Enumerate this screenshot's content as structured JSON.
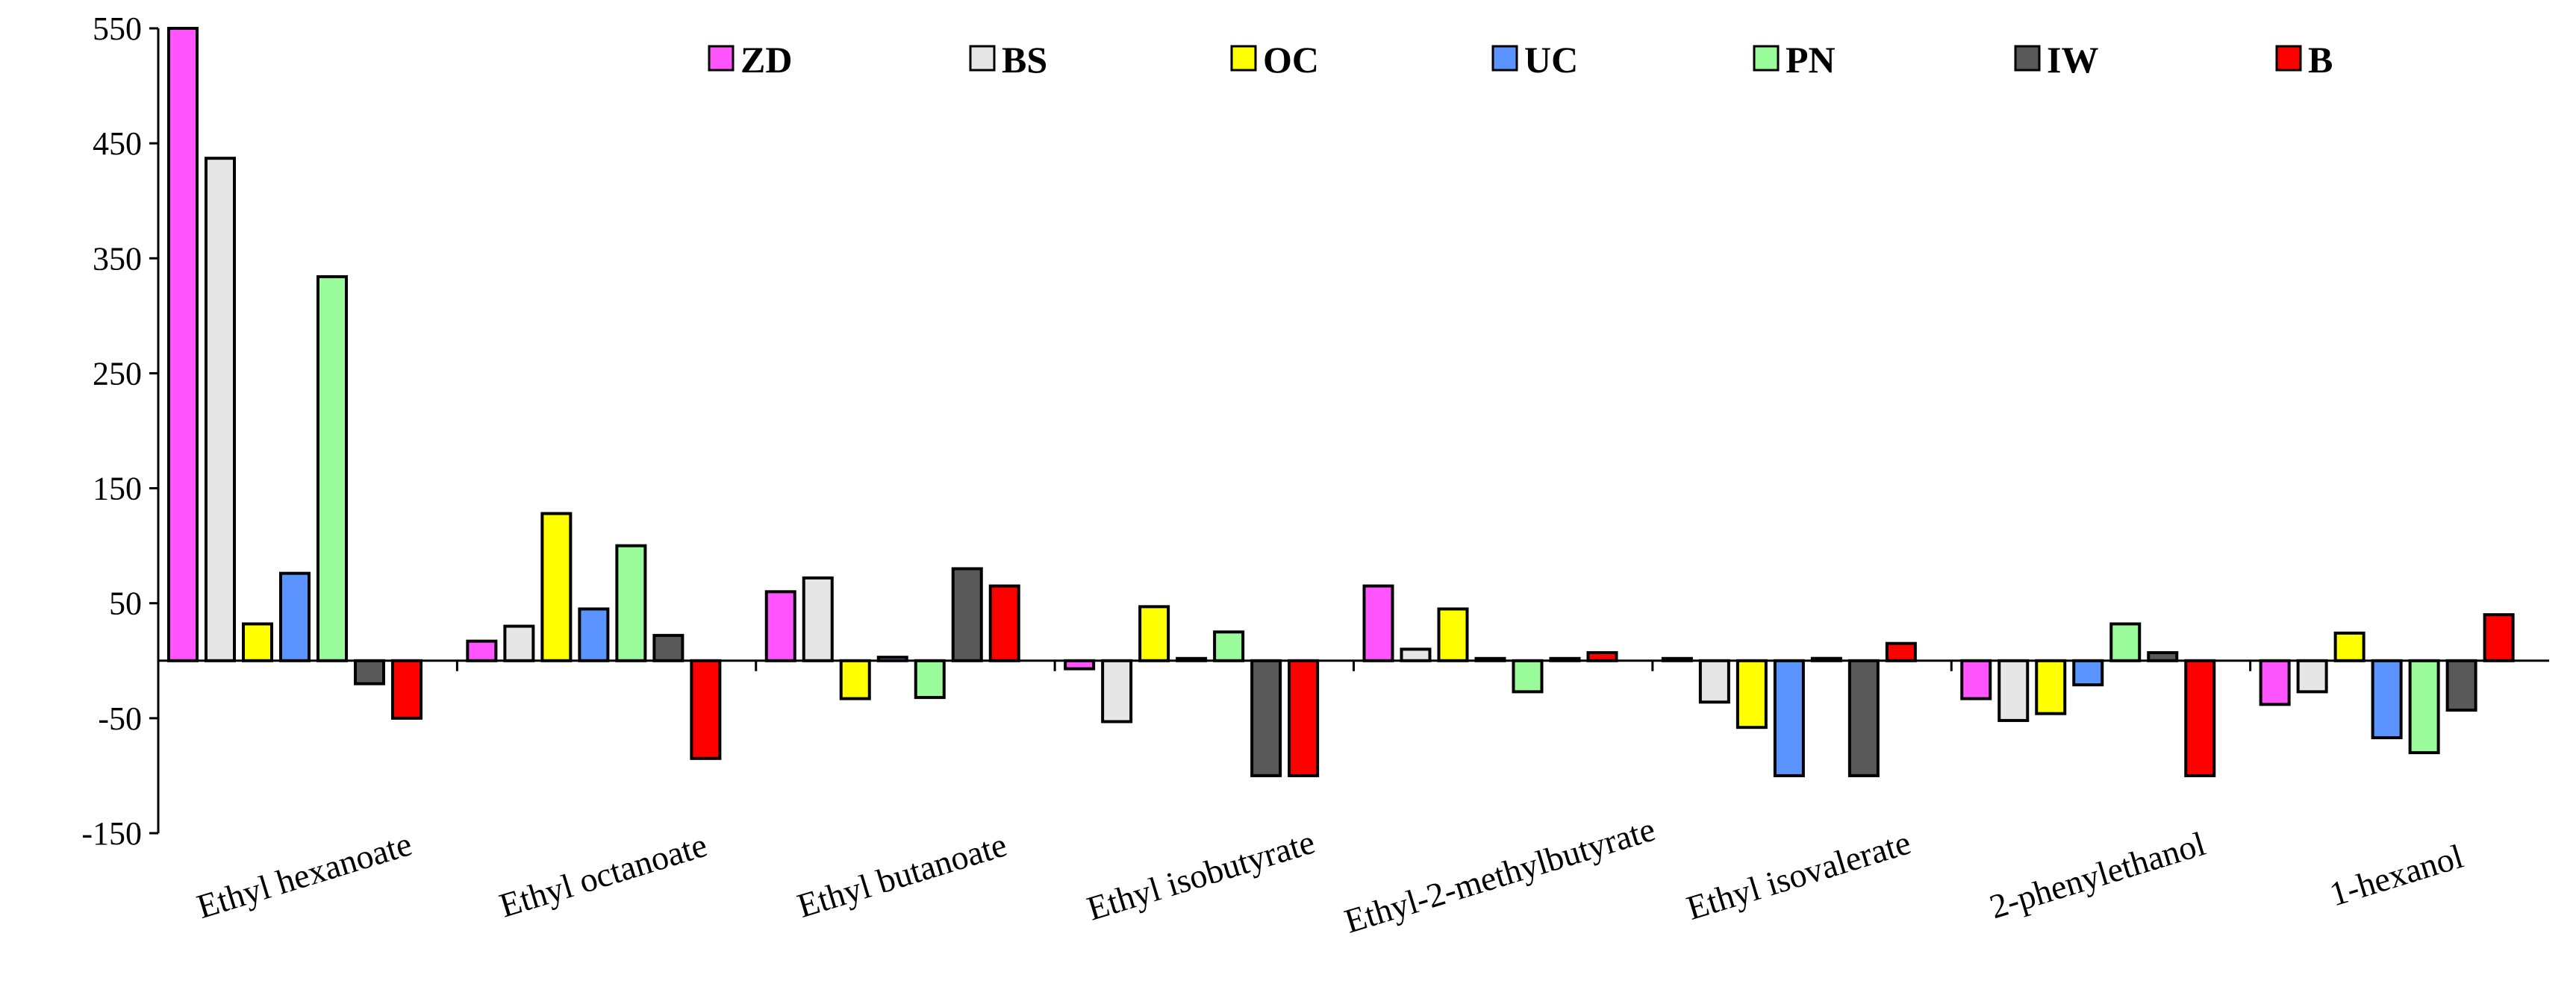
{
  "chart_data": {
    "type": "bar",
    "title": "",
    "xlabel": "",
    "ylabel": "",
    "ylim": [
      -150,
      550
    ],
    "yticks": [
      550,
      450,
      350,
      250,
      150,
      50,
      -50,
      -150
    ],
    "legend_position": "top",
    "categories": [
      "Ethyl hexanoate",
      "Ethyl octanoate",
      "Ethyl butanoate",
      "Ethyl isobutyrate",
      "Ethyl-2-methylbutyrate",
      "Ethyl isovalerate",
      "2-phenylethanol",
      "1-hexanol"
    ],
    "series": [
      {
        "name": "ZD",
        "color": "#FF55FF",
        "values": [
          550,
          17,
          60,
          -7,
          65,
          0,
          -33,
          -38
        ]
      },
      {
        "name": "BS",
        "color": "#E6E6E6",
        "values": [
          437,
          30,
          72,
          -53,
          10,
          -36,
          -52,
          -27
        ]
      },
      {
        "name": "OC",
        "color": "#FFFF00",
        "values": [
          32,
          128,
          -33,
          47,
          45,
          -58,
          -46,
          24
        ]
      },
      {
        "name": "UC",
        "color": "#5B93FF",
        "values": [
          76,
          45,
          3,
          0,
          0,
          -100,
          -21,
          -67
        ]
      },
      {
        "name": "PN",
        "color": "#9AFB9A",
        "values": [
          334,
          100,
          -32,
          25,
          -27,
          2,
          32,
          -80
        ]
      },
      {
        "name": "IW",
        "color": "#595959",
        "values": [
          -20,
          22,
          80,
          -100,
          0,
          -100,
          7,
          -43
        ]
      },
      {
        "name": "B",
        "color": "#FF0000",
        "values": [
          -50,
          -85,
          65,
          -100,
          7,
          15,
          -100,
          40
        ]
      }
    ]
  }
}
